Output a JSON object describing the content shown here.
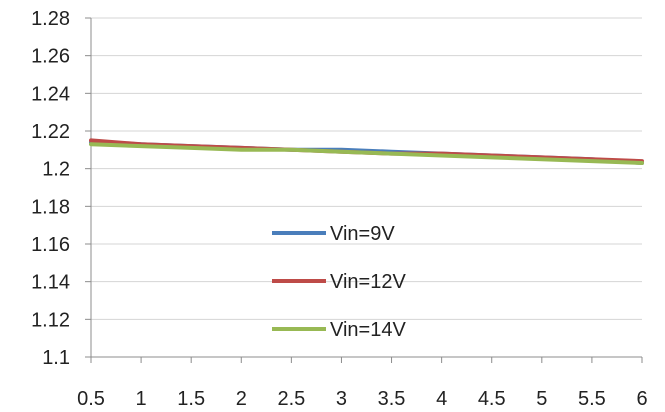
{
  "chart_data": {
    "type": "line",
    "title": "",
    "xlabel": "",
    "ylabel": "",
    "x": [
      0.5,
      1,
      1.5,
      2,
      2.5,
      3,
      3.5,
      4,
      4.5,
      5,
      5.5,
      6
    ],
    "x_tick_labels": [
      "0.5",
      "1",
      "1.5",
      "2",
      "2.5",
      "3",
      "3.5",
      "4",
      "4.5",
      "5",
      "5.5",
      "6"
    ],
    "y_ticks": [
      1.1,
      1.12,
      1.14,
      1.16,
      1.18,
      1.2,
      1.22,
      1.24,
      1.26,
      1.28
    ],
    "y_tick_labels": [
      "1.1",
      "1.12",
      "1.14",
      "1.16",
      "1.18",
      "1.2",
      "1.22",
      "1.24",
      "1.26",
      "1.28"
    ],
    "ylim": [
      1.1,
      1.28
    ],
    "grid": true,
    "legend_position": "center",
    "series": [
      {
        "name": "Vin=9V",
        "color": "#4a7ebb",
        "values": [
          1.214,
          1.213,
          1.212,
          1.211,
          1.21,
          1.21,
          1.209,
          1.208,
          1.207,
          1.206,
          1.205,
          1.203
        ]
      },
      {
        "name": "Vin=12V",
        "color": "#be4b48",
        "values": [
          1.215,
          1.213,
          1.212,
          1.211,
          1.21,
          1.209,
          1.208,
          1.208,
          1.207,
          1.206,
          1.205,
          1.204
        ]
      },
      {
        "name": "Vin=14V",
        "color": "#98b954",
        "values": [
          1.213,
          1.212,
          1.211,
          1.21,
          1.21,
          1.209,
          1.208,
          1.207,
          1.206,
          1.205,
          1.204,
          1.203
        ]
      }
    ]
  }
}
